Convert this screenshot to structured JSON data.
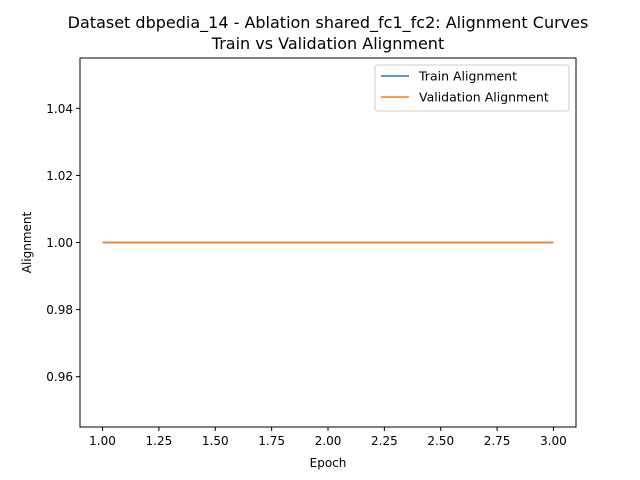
{
  "chart_data": {
    "type": "line",
    "title": "Dataset dbpedia_14 - Ablation shared_fc1_fc2: Alignment Curves",
    "subtitle": "Train vs Validation Alignment",
    "xlabel": "Epoch",
    "ylabel": "Alignment",
    "xlim": [
      0.9,
      3.1
    ],
    "ylim": [
      0.945,
      1.055
    ],
    "x_ticks": [
      1.0,
      1.25,
      1.5,
      1.75,
      2.0,
      2.25,
      2.5,
      2.75,
      3.0
    ],
    "x_tick_labels": [
      "1.00",
      "1.25",
      "1.50",
      "1.75",
      "2.00",
      "2.25",
      "2.50",
      "2.75",
      "3.00"
    ],
    "y_ticks": [
      0.96,
      0.98,
      1.0,
      1.02,
      1.04
    ],
    "y_tick_labels": [
      "0.96",
      "0.98",
      "1.00",
      "1.02",
      "1.04"
    ],
    "x": [
      1,
      2,
      3
    ],
    "series": [
      {
        "name": "Train Alignment",
        "color": "#1f77b4",
        "values": [
          1.0,
          1.0,
          1.0
        ]
      },
      {
        "name": "Validation Alignment",
        "color": "#ff7f0e",
        "values": [
          1.0,
          1.0,
          1.0
        ]
      }
    ],
    "grid": false,
    "legend_position": "top-right"
  }
}
